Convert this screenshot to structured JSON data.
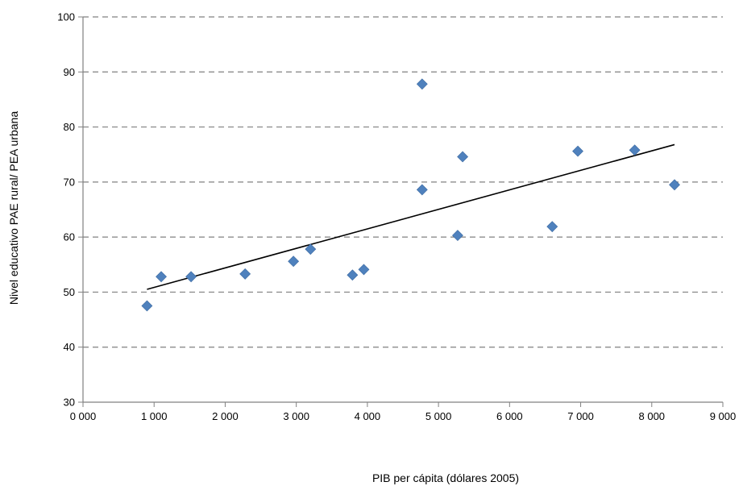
{
  "chart_data": {
    "type": "scatter",
    "title": "",
    "xlabel": "PIB per cápita  (dólares 2005)",
    "ylabel": "Nivel educativo PAE rural/ PEA urbana",
    "xlim": [
      0,
      9000
    ],
    "ylim": [
      30,
      100
    ],
    "x_ticks": [
      "0 000",
      "1 000",
      "2 000",
      "3 000",
      "4 000",
      "5 000",
      "6 000",
      "7 000",
      "8 000",
      "9 000"
    ],
    "y_ticks": [
      "30",
      "40",
      "50",
      "60",
      "70",
      "80",
      "90",
      "100"
    ],
    "grid": "horizontal dashed",
    "legend": "none",
    "marker": "diamond",
    "colors": {
      "points": "#4f81bd",
      "trendline": "#000000",
      "grid": "#808080"
    },
    "series": [
      {
        "points": [
          {
            "x": 900,
            "y": 47.5
          },
          {
            "x": 1100,
            "y": 52.8
          },
          {
            "x": 1520,
            "y": 52.8
          },
          {
            "x": 2280,
            "y": 53.3
          },
          {
            "x": 2960,
            "y": 55.6
          },
          {
            "x": 3200,
            "y": 57.8
          },
          {
            "x": 3790,
            "y": 53.1
          },
          {
            "x": 3950,
            "y": 54.1
          },
          {
            "x": 4770,
            "y": 87.8
          },
          {
            "x": 4770,
            "y": 68.6
          },
          {
            "x": 5270,
            "y": 60.3
          },
          {
            "x": 5340,
            "y": 74.6
          },
          {
            "x": 6600,
            "y": 61.9
          },
          {
            "x": 6960,
            "y": 75.6
          },
          {
            "x": 7760,
            "y": 75.8
          },
          {
            "x": 8320,
            "y": 69.5
          }
        ]
      }
    ],
    "trendline": {
      "x0": 900,
      "y0": 50.5,
      "x1": 8320,
      "y1": 76.8
    }
  }
}
